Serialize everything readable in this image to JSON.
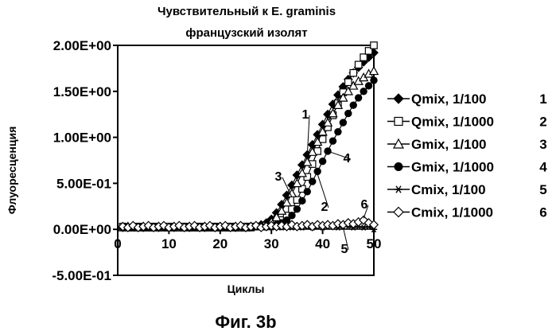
{
  "chart_data": {
    "type": "line",
    "title_line1": "Чувствительный к E. graminis",
    "title_line2": "французский изолят",
    "xlabel": "Циклы",
    "ylabel": "Флуоресценция",
    "caption": "Фиг. 3b",
    "xlim": [
      0,
      50
    ],
    "ylim": [
      -0.5,
      2.0
    ],
    "x_ticks": [
      0,
      10,
      20,
      30,
      40,
      50
    ],
    "x_tick_labels": [
      "0",
      "10",
      "20",
      "30",
      "40",
      "50"
    ],
    "y_ticks": [
      2.0,
      1.5,
      1.0,
      0.5,
      0.0,
      -0.5
    ],
    "y_tick_labels": [
      "2.00E+00",
      "1.50E+00",
      "1.00E+00",
      "5.00E-01",
      "0.00E+00",
      "-5.00E-01"
    ],
    "x": [
      1,
      2,
      3,
      4,
      5,
      6,
      7,
      8,
      9,
      10,
      11,
      12,
      13,
      14,
      15,
      16,
      17,
      18,
      19,
      20,
      21,
      22,
      23,
      24,
      25,
      26,
      27,
      28,
      29,
      30,
      31,
      32,
      33,
      34,
      35,
      36,
      37,
      38,
      39,
      40,
      41,
      42,
      43,
      44,
      45,
      46,
      47,
      48,
      49,
      50
    ],
    "series": [
      {
        "name": "Qmix, 1/100",
        "number": "1",
        "marker": "diamond-filled",
        "values": [
          0.02,
          0.02,
          0.03,
          0.02,
          0.02,
          0.03,
          0.02,
          0.02,
          0.03,
          0.02,
          0.02,
          0.03,
          0.02,
          0.02,
          0.03,
          0.02,
          0.02,
          0.03,
          0.02,
          0.02,
          0.03,
          0.02,
          0.02,
          0.03,
          0.02,
          0.03,
          0.04,
          0.05,
          0.07,
          0.11,
          0.18,
          0.27,
          0.37,
          0.48,
          0.59,
          0.7,
          0.81,
          0.92,
          1.03,
          1.14,
          1.25,
          1.36,
          1.46,
          1.55,
          1.63,
          1.7,
          1.76,
          1.82,
          1.87,
          1.92
        ]
      },
      {
        "name": "Qmix, 1/1000",
        "number": "2",
        "marker": "square-open",
        "values": [
          0.03,
          0.02,
          0.02,
          0.03,
          0.02,
          0.02,
          0.03,
          0.02,
          0.02,
          0.03,
          0.02,
          0.02,
          0.03,
          0.02,
          0.02,
          0.03,
          0.02,
          0.02,
          0.03,
          0.02,
          0.02,
          0.03,
          0.02,
          0.02,
          0.03,
          0.02,
          0.03,
          0.03,
          0.04,
          0.05,
          0.07,
          0.1,
          0.15,
          0.22,
          0.32,
          0.44,
          0.57,
          0.71,
          0.85,
          0.98,
          1.11,
          1.24,
          1.37,
          1.49,
          1.6,
          1.7,
          1.79,
          1.87,
          1.94,
          2.0
        ]
      },
      {
        "name": "Gmix, 1/100",
        "number": "3",
        "marker": "triangle-open",
        "values": [
          0.02,
          0.03,
          0.02,
          0.02,
          0.03,
          0.02,
          0.02,
          0.03,
          0.02,
          0.02,
          0.03,
          0.02,
          0.02,
          0.03,
          0.02,
          0.02,
          0.03,
          0.02,
          0.02,
          0.03,
          0.02,
          0.02,
          0.03,
          0.02,
          0.02,
          0.03,
          0.03,
          0.04,
          0.05,
          0.08,
          0.13,
          0.2,
          0.29,
          0.39,
          0.5,
          0.61,
          0.73,
          0.84,
          0.95,
          1.06,
          1.16,
          1.26,
          1.35,
          1.43,
          1.5,
          1.56,
          1.61,
          1.65,
          1.69,
          1.72
        ]
      },
      {
        "name": "Gmix, 1/1000",
        "number": "4",
        "marker": "circle-filled",
        "values": [
          0.02,
          0.02,
          0.02,
          0.03,
          0.02,
          0.02,
          0.02,
          0.03,
          0.02,
          0.02,
          0.02,
          0.03,
          0.02,
          0.02,
          0.02,
          0.03,
          0.02,
          0.02,
          0.02,
          0.03,
          0.02,
          0.02,
          0.02,
          0.03,
          0.02,
          0.02,
          0.03,
          0.03,
          0.03,
          0.04,
          0.05,
          0.07,
          0.1,
          0.15,
          0.22,
          0.31,
          0.41,
          0.52,
          0.63,
          0.74,
          0.85,
          0.96,
          1.06,
          1.16,
          1.26,
          1.35,
          1.43,
          1.5,
          1.56,
          1.62
        ]
      },
      {
        "name": "Cmix, 1/100",
        "number": "5",
        "marker": "asterisk",
        "values": [
          0.02,
          0.02,
          0.03,
          0.02,
          0.02,
          0.02,
          0.03,
          0.02,
          0.02,
          0.02,
          0.03,
          0.02,
          0.02,
          0.02,
          0.03,
          0.02,
          0.02,
          0.02,
          0.03,
          0.02,
          0.02,
          0.02,
          0.03,
          0.02,
          0.02,
          0.02,
          0.03,
          0.02,
          0.02,
          0.02,
          0.03,
          0.02,
          0.03,
          0.02,
          0.03,
          0.02,
          0.03,
          0.02,
          0.03,
          0.02,
          0.03,
          0.03,
          0.02,
          0.03,
          0.03,
          0.02,
          0.03,
          0.02,
          0.03,
          0.0
        ]
      },
      {
        "name": "Cmix, 1/1000",
        "number": "6",
        "marker": "diamond-open",
        "values": [
          0.03,
          0.02,
          0.04,
          0.02,
          0.03,
          0.04,
          0.02,
          0.03,
          0.04,
          0.02,
          0.03,
          0.04,
          0.02,
          0.03,
          0.04,
          0.02,
          0.03,
          0.04,
          0.02,
          0.03,
          0.04,
          0.02,
          0.03,
          0.04,
          0.02,
          0.03,
          0.04,
          0.02,
          0.03,
          0.04,
          0.03,
          0.04,
          0.03,
          0.05,
          0.03,
          0.04,
          0.05,
          0.03,
          0.05,
          0.04,
          0.05,
          0.04,
          0.06,
          0.05,
          0.07,
          0.06,
          0.08,
          0.1,
          0.07,
          0.05
        ]
      }
    ],
    "annotations": [
      {
        "label": "1",
        "series": "1"
      },
      {
        "label": "2",
        "series": "2"
      },
      {
        "label": "3",
        "series": "3"
      },
      {
        "label": "4",
        "series": "4"
      },
      {
        "label": "5",
        "series": "5"
      },
      {
        "label": "6",
        "series": "6"
      }
    ]
  }
}
